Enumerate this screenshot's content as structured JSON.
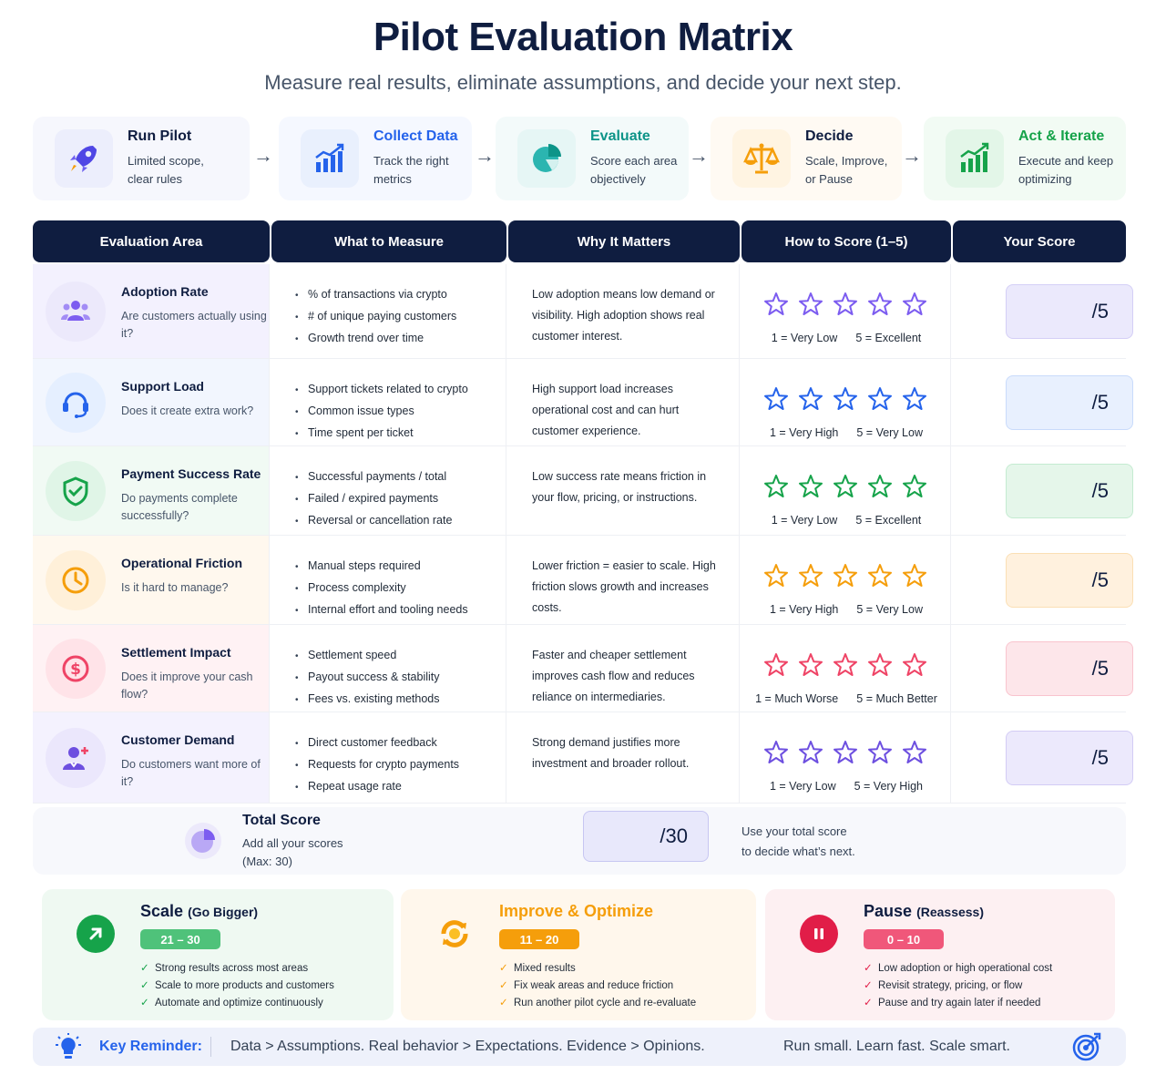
{
  "header": {
    "title": "Pilot Evaluation Matrix",
    "subtitle": "Measure real results, eliminate assumptions, and decide your next step."
  },
  "steps": [
    {
      "title": "Run Pilot",
      "desc": "Limited scope,\nclear rules",
      "icon": "rocket-icon",
      "color": "#4f46e5"
    },
    {
      "title": "Collect Data",
      "desc": "Track the right\nmetrics",
      "icon": "bar-chart-icon",
      "color": "#2563eb"
    },
    {
      "title": "Evaluate",
      "desc": "Score each area\nobjectively",
      "icon": "pie-chart-icon",
      "color": "#0d9488"
    },
    {
      "title": "Decide",
      "desc": "Scale, Improve,\nor Pause",
      "icon": "scale-icon",
      "color": "#f59e0b"
    },
    {
      "title": "Act & Iterate",
      "desc": "Execute and keep\noptimizing",
      "icon": "growth-chart-icon",
      "color": "#16a34a"
    }
  ],
  "table": {
    "headers": [
      "Evaluation Area",
      "What to Measure",
      "Why It Matters",
      "How to Score (1–5)",
      "Your Score"
    ],
    "score_suffix": "/5",
    "rows": [
      {
        "title": "Adoption Rate",
        "desc": "Are customers actually using it?",
        "icon": "users-icon",
        "accent": "#7c5cf0",
        "measures": [
          "% of transactions via crypto",
          "# of unique paying customers",
          "Growth trend over time"
        ],
        "why": "Low adoption means low demand or visibility. High adoption shows real customer interest.",
        "low_label": "1 = Very Low",
        "high_label": "5 = Excellent"
      },
      {
        "title": "Support Load",
        "desc": "Does it create extra work?",
        "icon": "headset-icon",
        "accent": "#2563eb",
        "measures": [
          "Support tickets related to crypto",
          "Common issue types",
          "Time spent per ticket"
        ],
        "why": "High support load increases operational cost and can hurt customer experience.",
        "low_label": "1 = Very High",
        "high_label": "5 = Very Low"
      },
      {
        "title": "Payment Success Rate",
        "desc": "Do payments complete successfully?",
        "icon": "shield-check-icon",
        "accent": "#16a34a",
        "measures": [
          "Successful payments / total",
          "Failed / expired payments",
          "Reversal or cancellation rate"
        ],
        "why": "Low success rate means friction in your flow, pricing, or instructions.",
        "low_label": "1 = Very Low",
        "high_label": "5 = Excellent"
      },
      {
        "title": "Operational Friction",
        "desc": "Is it hard to manage?",
        "icon": "clock-icon",
        "accent": "#f59e0b",
        "measures": [
          "Manual steps required",
          "Process complexity",
          "Internal effort and tooling needs"
        ],
        "why": "Lower friction = easier to scale. High friction slows growth and increases costs.",
        "low_label": "1 = Very High",
        "high_label": "5 = Very Low"
      },
      {
        "title": "Settlement Impact",
        "desc": "Does it improve your cash flow?",
        "icon": "dollar-icon",
        "accent": "#ef4466",
        "measures": [
          "Settlement speed",
          "Payout success & stability",
          "Fees vs. existing methods"
        ],
        "why": "Faster and cheaper settlement improves cash flow and reduces reliance on intermediaries.",
        "low_label": "1 = Much Worse",
        "high_label": "5 = Much Better"
      },
      {
        "title": "Customer Demand",
        "desc": "Do customers want more of it?",
        "icon": "user-plus-icon",
        "accent": "#6d4fe0",
        "measures": [
          "Direct customer feedback",
          "Requests for crypto payments",
          "Repeat usage rate"
        ],
        "why": "Strong demand justifies more investment and broader rollout.",
        "low_label": "1 = Very Low",
        "high_label": "5 = Very High"
      }
    ]
  },
  "total": {
    "title": "Total Score",
    "desc1": "Add all your scores",
    "desc2": "(Max: 30)",
    "score_suffix": "/30",
    "note1": "Use your total score",
    "note2": "to decide what’s next."
  },
  "decisions": [
    {
      "title": "Scale",
      "qualifier": "(Go Bigger)",
      "range": "21 – 30",
      "color": "#16a34a",
      "icon": "arrow-up-right-icon",
      "items": [
        "Strong results across most areas",
        "Scale to more products and customers",
        "Automate and optimize continuously"
      ]
    },
    {
      "title": "Improve & Optimize",
      "qualifier": "",
      "range": "11 – 20",
      "color": "#f59e0b",
      "icon": "refresh-icon",
      "items": [
        "Mixed results",
        "Fix weak areas and reduce friction",
        "Run another pilot cycle and re-evaluate"
      ]
    },
    {
      "title": "Pause",
      "qualifier": "(Reassess)",
      "range": "0 – 10",
      "color": "#e11d48",
      "icon": "pause-icon",
      "items": [
        "Low adoption or high operational cost",
        "Revisit strategy, pricing, or flow",
        "Pause and try again later if needed"
      ]
    }
  ],
  "reminder": {
    "label": "Key Reminder:",
    "text": "Data > Assumptions. Real behavior > Expectations. Evidence > Opinions.",
    "tagline": "Run small. Learn fast. Scale smart."
  }
}
